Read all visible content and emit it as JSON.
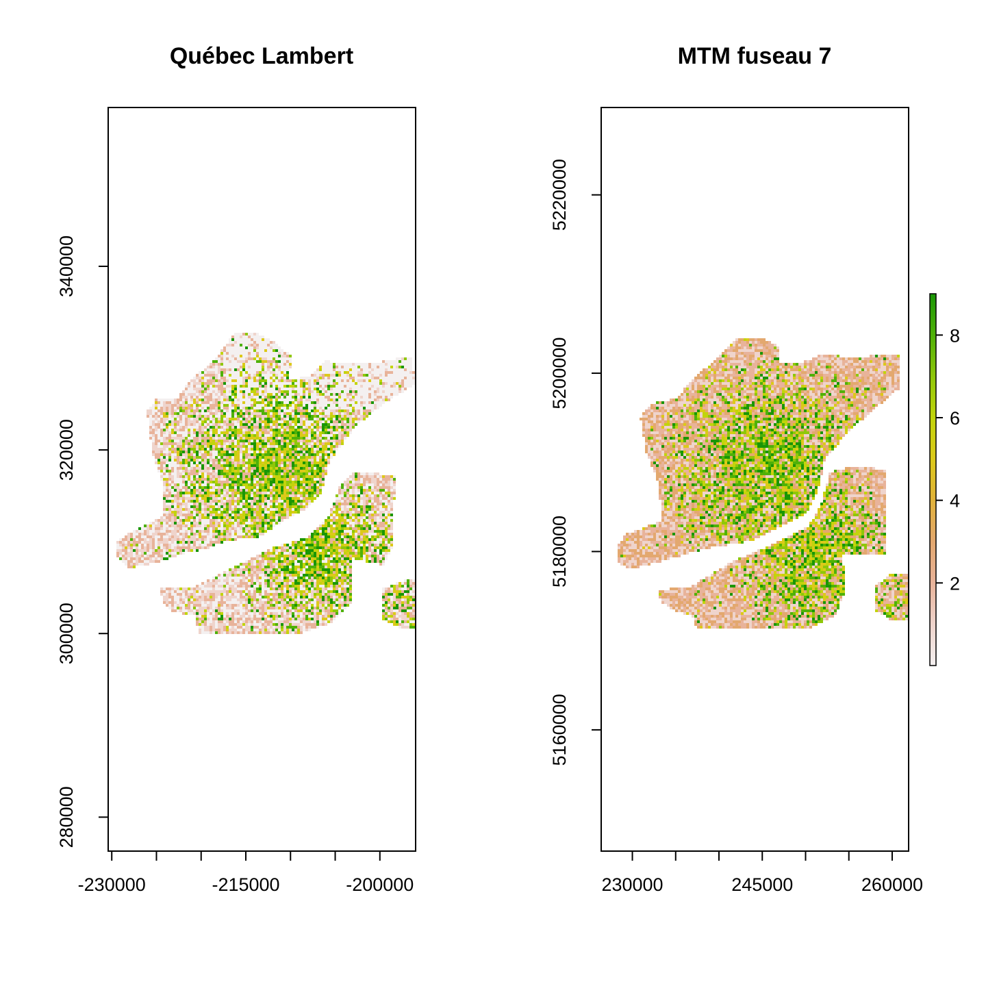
{
  "colors": {
    "ramp": [
      "#f4f0f0",
      "#efd4cc",
      "#e8b39a",
      "#e3a86f",
      "#e1b23a",
      "#dcc91a",
      "#c2d40c",
      "#8fc70a",
      "#4fb108",
      "#1a9606"
    ],
    "frame": "#000000",
    "na": "#ffffff"
  },
  "panels": [
    {
      "id": "quebec-lambert",
      "title": "Québec Lambert",
      "x_range": [
        -230400,
        -196000
      ],
      "y_range": [
        276300,
        357300
      ],
      "x_ticks": [
        -230000,
        -225000,
        -220000,
        -215000,
        -210000,
        -205000,
        -200000
      ],
      "x_tick_labels": [
        "-230000",
        "",
        "",
        "-215000",
        "",
        "",
        "-200000"
      ],
      "y_ticks": [
        280000,
        300000,
        320000,
        340000
      ],
      "y_tick_labels": [
        "280000",
        "300000",
        "320000",
        "340000"
      ]
    },
    {
      "id": "mtm-fuseau-7",
      "title": "MTM fuseau 7",
      "x_range": [
        226400,
        261900
      ],
      "y_range": [
        5146400,
        5229800
      ],
      "x_ticks": [
        230000,
        235000,
        240000,
        245000,
        250000,
        255000,
        260000
      ],
      "x_tick_labels": [
        "230000",
        "",
        "",
        "245000",
        "",
        "",
        "260000"
      ],
      "y_ticks": [
        5160000,
        5180000,
        5200000,
        5220000
      ],
      "y_tick_labels": [
        "5160000",
        "5180000",
        "5200000",
        "5220000"
      ]
    }
  ],
  "legend": {
    "range": [
      0,
      9
    ],
    "ticks": [
      2,
      4,
      6,
      8
    ],
    "tick_labels": [
      "2",
      "4",
      "6",
      "8"
    ]
  }
}
